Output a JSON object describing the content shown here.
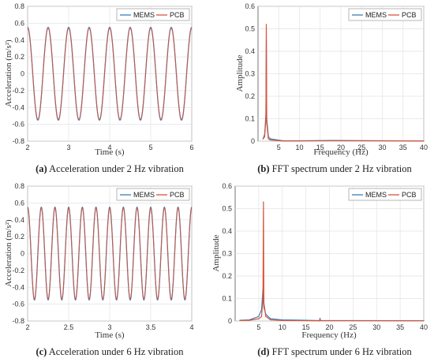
{
  "chart_data": [
    {
      "type": "line",
      "panel": "a",
      "caption_letter": "(a)",
      "caption_text": " Acceleration under 2 Hz vibration",
      "xlabel": "Time (s)",
      "ylabel": "Acceleration (m/s²)",
      "xlim": [
        2,
        6
      ],
      "ylim": [
        -0.8,
        0.8
      ],
      "xticks": [
        "2",
        "3",
        "4",
        "5",
        "6"
      ],
      "yticks": [
        "-0.8",
        "-0.6",
        "-0.4",
        "-0.2",
        "0",
        "0.2",
        "0.4",
        "0.6",
        "0.8"
      ],
      "grid": true,
      "legend": "top-right",
      "signal": {
        "frequency_hz": 2,
        "amplitude": 0.55
      },
      "series": [
        {
          "name": "MEMS",
          "color": "#3a7fb8"
        },
        {
          "name": "PCB",
          "color": "#d9533a"
        }
      ]
    },
    {
      "type": "line",
      "panel": "b",
      "caption_letter": "(b)",
      "caption_text": " FFT spectrum under 2 Hz vibration",
      "xlabel": "Frequency (Hz)",
      "ylabel": "Amplitude",
      "xlim": [
        0,
        40
      ],
      "ylim": [
        0,
        0.6
      ],
      "xticks": [
        "5",
        "10",
        "15",
        "20",
        "25",
        "30",
        "35",
        "40"
      ],
      "yticks": [
        "0",
        "0.1",
        "0.2",
        "0.3",
        "0.4",
        "0.5",
        "0.6"
      ],
      "grid": true,
      "legend": "top-right",
      "series": [
        {
          "name": "MEMS",
          "color": "#3a7fb8",
          "x": [
            1.2,
            1.6,
            1.9,
            2.0,
            2.1,
            2.5,
            3.0,
            6.0,
            10.0,
            18.0,
            40.0
          ],
          "y": [
            0.01,
            0.03,
            0.12,
            0.45,
            0.1,
            0.02,
            0.01,
            0.002,
            0.002,
            0.003,
            0.001
          ]
        },
        {
          "name": "PCB",
          "color": "#d9533a",
          "x": [
            1.2,
            1.6,
            1.9,
            2.0,
            2.1,
            2.5,
            3.0,
            6.0,
            10.0,
            18.0,
            40.0
          ],
          "y": [
            0.01,
            0.02,
            0.1,
            0.52,
            0.08,
            0.01,
            0.005,
            0.001,
            0.001,
            0.002,
            0.001
          ]
        }
      ]
    },
    {
      "type": "line",
      "panel": "c",
      "caption_letter": "(c)",
      "caption_text": " Acceleration under 6 Hz vibration",
      "xlabel": "Time (s)",
      "ylabel": "Acceleration (m/s²)",
      "xlim": [
        2,
        4
      ],
      "ylim": [
        -0.8,
        0.8
      ],
      "xticks": [
        "2",
        "2.5",
        "3",
        "3.5",
        "4"
      ],
      "yticks": [
        "-0.8",
        "-0.6",
        "-0.4",
        "-0.2",
        "0",
        "0.2",
        "0.4",
        "0.6",
        "0.8"
      ],
      "grid": true,
      "legend": "top-right",
      "signal": {
        "frequency_hz": 6,
        "amplitude": 0.55
      },
      "series": [
        {
          "name": "MEMS",
          "color": "#3a7fb8"
        },
        {
          "name": "PCB",
          "color": "#d9533a"
        }
      ]
    },
    {
      "type": "line",
      "panel": "d",
      "caption_letter": "(d)",
      "caption_text": " FFT spectrum under 6 Hz vibration",
      "xlabel": "Frequency (Hz)",
      "ylabel": "Amplitude",
      "xlim": [
        0,
        40
      ],
      "ylim": [
        0,
        0.6
      ],
      "xticks": [
        "5",
        "10",
        "15",
        "20",
        "25",
        "30",
        "35",
        "40"
      ],
      "yticks": [
        "0",
        "0.1",
        "0.2",
        "0.3",
        "0.4",
        "0.5",
        "0.6"
      ],
      "grid": true,
      "legend": "top-right",
      "series": [
        {
          "name": "MEMS",
          "color": "#3a7fb8",
          "x": [
            1.0,
            3.0,
            5.0,
            5.6,
            5.9,
            6.0,
            6.1,
            6.5,
            7.5,
            10.0,
            17.9,
            18.0,
            18.1,
            25.0,
            40.0
          ],
          "y": [
            0.003,
            0.005,
            0.02,
            0.05,
            0.14,
            0.09,
            0.06,
            0.03,
            0.01,
            0.005,
            0.002,
            0.012,
            0.002,
            0.002,
            0.001
          ]
        },
        {
          "name": "PCB",
          "color": "#d9533a",
          "x": [
            1.0,
            3.0,
            5.0,
            5.6,
            5.9,
            6.0,
            6.1,
            6.5,
            7.5,
            10.0,
            17.9,
            18.0,
            18.1,
            25.0,
            40.0
          ],
          "y": [
            0.002,
            0.003,
            0.01,
            0.02,
            0.1,
            0.53,
            0.08,
            0.02,
            0.005,
            0.002,
            0.001,
            0.008,
            0.001,
            0.001,
            0.001
          ]
        }
      ]
    }
  ]
}
